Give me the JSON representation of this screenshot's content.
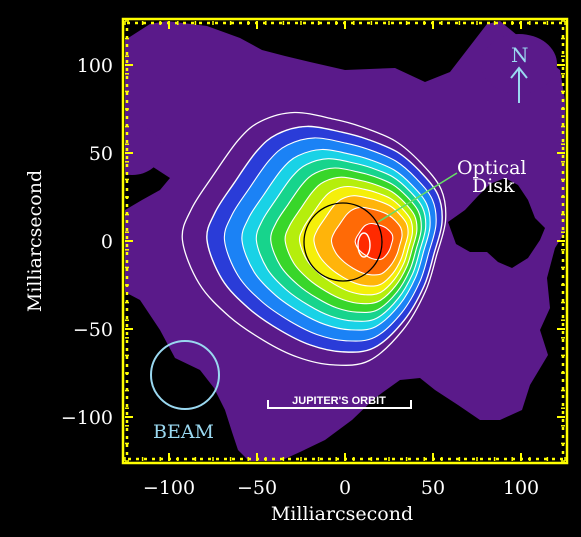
{
  "figure": {
    "xlabel": "Milliarcsecond",
    "ylabel": "Milliarcsecond",
    "xlim": [
      -125,
      125
    ],
    "ylim": [
      -125,
      125
    ],
    "x_ticks": [
      -100,
      -50,
      0,
      50,
      100
    ],
    "y_ticks": [
      -100,
      -50,
      0,
      50,
      100
    ],
    "x_tick_labels": [
      "−100",
      "−50",
      "0",
      "50",
      "100"
    ],
    "y_tick_labels": [
      "−100",
      "−50",
      "0",
      "50",
      "100"
    ]
  },
  "annotations": {
    "optical_disk": "Optical\nDisk",
    "optical_disk_line1": "Optical",
    "optical_disk_line2": "Disk",
    "beam": "BEAM",
    "north": "N",
    "jupiter_orbit": "JUPITER'S ORBIT"
  },
  "colors": {
    "background": "#000000",
    "frame": "#ffff00",
    "halo": "#5a1a8a",
    "contour_line": "#ffffff",
    "beam_circle": "#9ad8f0",
    "optical_disk_line": "#66dd66",
    "levels": [
      "#5a1a8a",
      "#2a3cd8",
      "#1b82f5",
      "#19d2e6",
      "#17d48c",
      "#38d62a",
      "#b5ee0c",
      "#f5ef0a",
      "#ffb40a",
      "#ff6a06",
      "#ff2a00"
    ]
  },
  "icons": {
    "north_arrow": "north-arrow-icon"
  }
}
